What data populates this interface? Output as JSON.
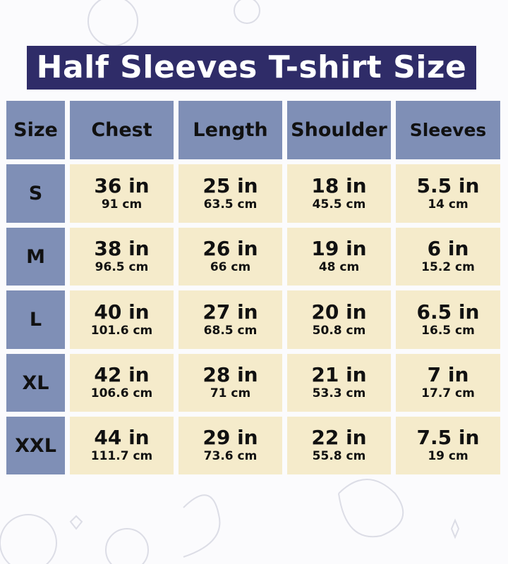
{
  "title": "Half Sleeves T-shirt Size",
  "colors": {
    "title_bg": "#2f2c68",
    "header_bg": "#7f8fb6",
    "cell_bg": "#f5ebcb"
  },
  "headers": [
    "Size",
    "Chest",
    "Length",
    "Shoulder",
    "Sleeves"
  ],
  "rows": [
    {
      "size": "S",
      "cells": [
        {
          "in": "36 in",
          "cm": "91 cm"
        },
        {
          "in": "25 in",
          "cm": "63.5 cm"
        },
        {
          "in": "18 in",
          "cm": "45.5 cm"
        },
        {
          "in": "5.5 in",
          "cm": "14 cm"
        }
      ]
    },
    {
      "size": "M",
      "cells": [
        {
          "in": "38 in",
          "cm": "96.5 cm"
        },
        {
          "in": "26 in",
          "cm": "66 cm"
        },
        {
          "in": "19 in",
          "cm": "48 cm"
        },
        {
          "in": "6 in",
          "cm": "15.2 cm"
        }
      ]
    },
    {
      "size": "L",
      "cells": [
        {
          "in": "40 in",
          "cm": "101.6 cm"
        },
        {
          "in": "27 in",
          "cm": "68.5 cm"
        },
        {
          "in": "20 in",
          "cm": "50.8 cm"
        },
        {
          "in": "6.5 in",
          "cm": "16.5 cm"
        }
      ]
    },
    {
      "size": "XL",
      "cells": [
        {
          "in": "42 in",
          "cm": "106.6 cm"
        },
        {
          "in": "28 in",
          "cm": "71 cm"
        },
        {
          "in": "21 in",
          "cm": "53.3 cm"
        },
        {
          "in": "7 in",
          "cm": "17.7 cm"
        }
      ]
    },
    {
      "size": "XXL",
      "cells": [
        {
          "in": "44 in",
          "cm": "111.7 cm"
        },
        {
          "in": "29 in",
          "cm": "73.6 cm"
        },
        {
          "in": "22 in",
          "cm": "55.8 cm"
        },
        {
          "in": "7.5 in",
          "cm": "19 cm"
        }
      ]
    }
  ]
}
